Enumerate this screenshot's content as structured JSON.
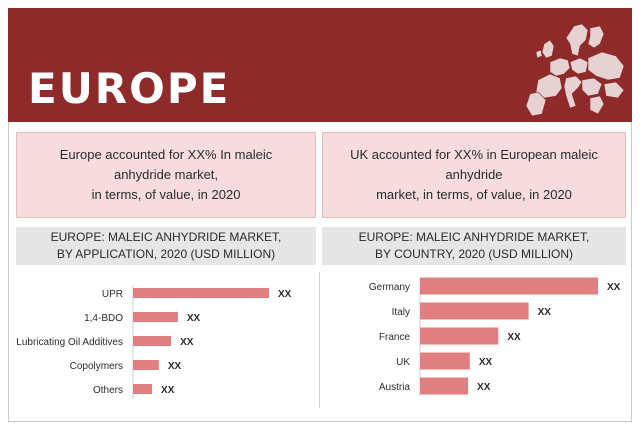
{
  "header": {
    "title": "EUROPE",
    "map_icon": "europe-map-icon",
    "background": "#8e2a2a"
  },
  "highlights": [
    {
      "line1": "Europe accounted for XX% In maleic anhydride   market,",
      "line2": "in terms, of value, in 2020"
    },
    {
      "line1": "UK accounted for XX% in European maleic anhydride",
      "line2": "market, in terms, of value, in 2020"
    }
  ],
  "bar_color": "#e07f7f",
  "chart_data": [
    {
      "type": "bar",
      "orientation": "horizontal",
      "title_line1": "EUROPE: MALEIC ANHYDRIDE  MARKET,",
      "title_line2": "BY  APPLICATION, 2020 (USD MILLION)",
      "categories": [
        "UPR",
        "1,4-BDO",
        "Lubricating Oil Additives",
        "Copolymers",
        "Others"
      ],
      "values": [
        100,
        33,
        28,
        19,
        14
      ],
      "value_labels": [
        "XX",
        "XX",
        "XX",
        "XX",
        "XX"
      ],
      "xlim": [
        0,
        100
      ],
      "grid": false
    },
    {
      "type": "bar",
      "orientation": "horizontal",
      "title_line1": "EUROPE: MALEIC ANHYDRIDE  MARKET,",
      "title_line2": "BY COUNTRY, 2020 (USD MILLION)",
      "categories": [
        "Germany",
        "Italy",
        "France",
        "UK",
        "Austria"
      ],
      "values": [
        100,
        61,
        44,
        28,
        27
      ],
      "value_labels": [
        "XX",
        "XX",
        "XX",
        "XX",
        "XX"
      ],
      "xlim": [
        0,
        100
      ],
      "grid": false
    }
  ]
}
